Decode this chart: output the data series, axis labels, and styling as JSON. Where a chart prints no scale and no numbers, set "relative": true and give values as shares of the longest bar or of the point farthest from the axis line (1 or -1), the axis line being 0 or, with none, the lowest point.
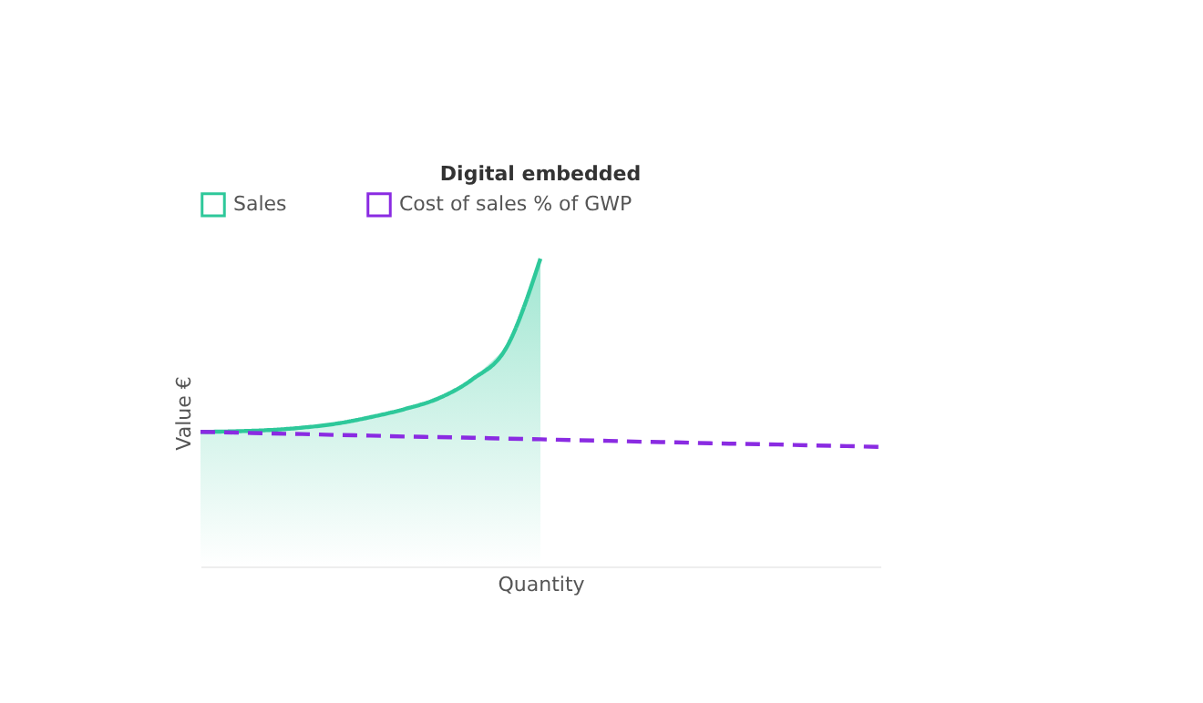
{
  "chart_data": {
    "type": "line",
    "title": "Digital embedded",
    "xlabel": "Quantity",
    "ylabel": "Value €",
    "relative": true,
    "legend": "top",
    "categories": [
      null,
      null,
      null,
      null,
      null,
      null,
      null,
      null,
      null,
      null,
      null,
      null,
      null,
      null,
      null,
      null,
      null,
      null,
      null,
      null,
      null
    ],
    "series": [
      {
        "name": "Sales",
        "type": "area",
        "color": "#2ec89a",
        "line_style": "solid",
        "values": [
          0.437,
          0.439,
          0.443,
          0.451,
          0.464,
          0.485,
          0.511,
          0.546,
          0.608,
          0.711,
          1.0,
          null,
          null,
          null,
          null,
          null,
          null,
          null,
          null,
          null,
          null
        ]
      },
      {
        "name": "Cost of sales % of GWP",
        "color": "#8a2be2",
        "line_style": "dashed",
        "values": [
          0.437,
          0.435,
          0.432,
          0.43,
          0.427,
          0.425,
          0.422,
          0.42,
          0.418,
          0.415,
          0.413,
          0.41,
          0.408,
          0.405,
          0.403,
          0.4,
          0.398,
          0.396,
          0.393,
          0.391,
          0.388
        ]
      }
    ]
  }
}
